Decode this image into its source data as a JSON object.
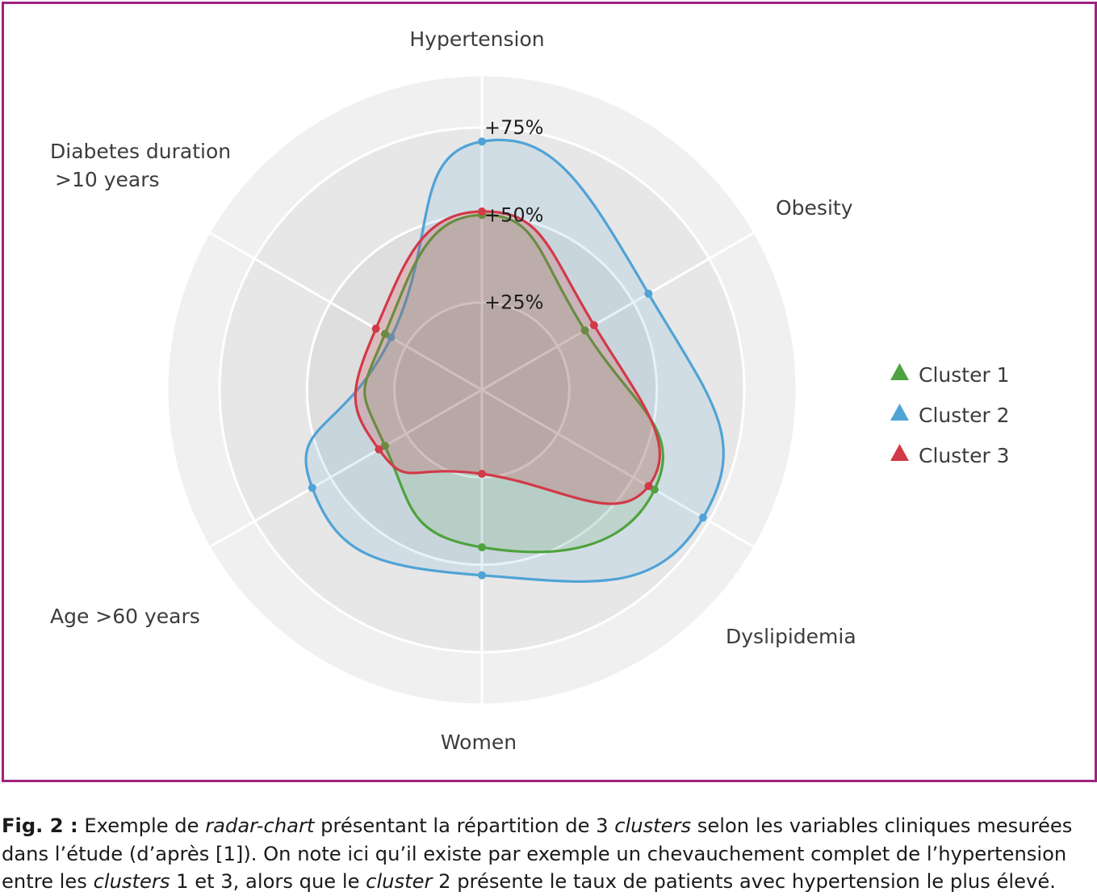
{
  "chart_data": {
    "type": "radar",
    "axes": [
      "Hypertension",
      "Obesity",
      "Dyslipidemia",
      "Women",
      "Age >60 years",
      "Diabetes duration\n>10 years"
    ],
    "axis_labels": {
      "hypertension": "Hypertension",
      "obesity": "Obesity",
      "dyslipidemia": "Dyslipidemia",
      "women": "Women",
      "age": "Age >60 years",
      "diabetes_line1": "Diabetes duration",
      "diabetes_line2": ">10 years"
    },
    "tick_labels": [
      "+25%",
      "+50%",
      "+75%"
    ],
    "ticks": [
      25,
      50,
      75
    ],
    "rmax": 90,
    "series": [
      {
        "name": "Cluster 1",
        "color": "#4ea33e",
        "values": [
          50,
          34,
          57,
          45,
          32,
          32
        ]
      },
      {
        "name": "Cluster 2",
        "color": "#4fa3d6",
        "values": [
          71,
          55,
          73,
          53,
          56,
          30
        ]
      },
      {
        "name": "Cluster 3",
        "color": "#d13a47",
        "values": [
          51,
          37,
          55,
          24,
          34,
          35
        ]
      }
    ],
    "legend_position": "right"
  },
  "caption": {
    "fig_label": "Fig. 2 :",
    "l1a": " Exemple de ",
    "l1b": "radar-chart",
    "l1c": " présentant la répartition de 3 ",
    "l1d": "clusters",
    "l1e": " selon les variables cliniques mesurées",
    "l2": "dans l’étude (d’après [1]). On note ici qu’il existe par exemple un chevauchement complet de l’hypertension",
    "l3a": "entre les ",
    "l3b": "clusters",
    "l3c": " 1 et 3, alors que le ",
    "l3d": "cluster",
    "l3e": " 2 présente le taux de patients avec hypertension le plus élevé."
  }
}
